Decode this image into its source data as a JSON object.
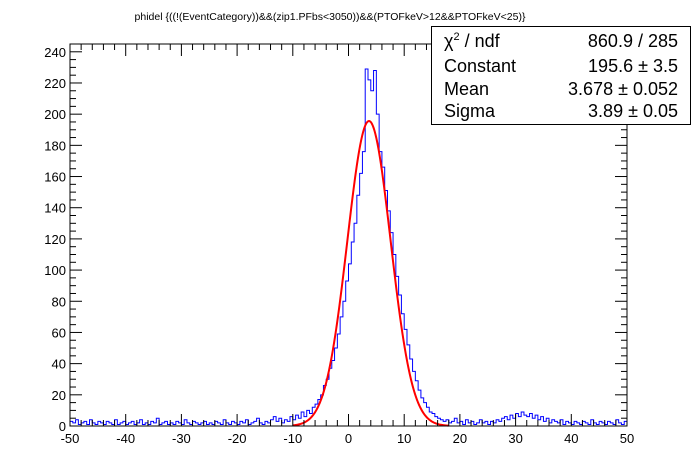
{
  "chart_data": {
    "type": "histogram",
    "title": "phidel {((!(EventCategory))&&(zip1.PFbs<3050))&&(PTOFkeV>12&&PTOFkeV<25)}",
    "xlim": [
      -50,
      50
    ],
    "ylim": [
      0,
      245
    ],
    "xticks": [
      -50,
      -40,
      -30,
      -20,
      -10,
      0,
      10,
      20,
      30,
      40,
      50
    ],
    "yticks": [
      0,
      20,
      40,
      60,
      80,
      100,
      120,
      140,
      160,
      180,
      200,
      220,
      240
    ],
    "bin_width": 0.5,
    "histogram_color": "#0000ff",
    "fit_color": "#ff0000",
    "fit": {
      "function": "gaus",
      "constant": 195.6,
      "mean": 3.678,
      "sigma": 3.89,
      "range": [
        -10,
        18
      ]
    },
    "stats_box": {
      "rows": [
        {
          "name": "ndf",
          "value": "860.9 / 285"
        },
        {
          "name": "Constant",
          "value": "195.6 ± 3.5"
        },
        {
          "name": "Mean",
          "value": "3.678 ± 0.052"
        },
        {
          "name": "Sigma",
          "value": "3.89 ± 0.05"
        }
      ]
    },
    "bins": [
      [
        -50,
        3
      ],
      [
        -49.5,
        2
      ],
      [
        -49,
        4
      ],
      [
        -48.5,
        1
      ],
      [
        -48,
        2
      ],
      [
        -47.5,
        3
      ],
      [
        -47,
        1
      ],
      [
        -46.5,
        4
      ],
      [
        -46,
        2
      ],
      [
        -45.5,
        1
      ],
      [
        -45,
        3
      ],
      [
        -44.5,
        2
      ],
      [
        -44,
        1
      ],
      [
        -43.5,
        3
      ],
      [
        -43,
        2
      ],
      [
        -42.5,
        1
      ],
      [
        -42,
        4
      ],
      [
        -41.5,
        1
      ],
      [
        -41,
        2
      ],
      [
        -40.5,
        3
      ],
      [
        -40,
        1
      ],
      [
        -39.5,
        2
      ],
      [
        -39,
        3
      ],
      [
        -38.5,
        1
      ],
      [
        -38,
        2
      ],
      [
        -37.5,
        4
      ],
      [
        -37,
        1
      ],
      [
        -36.5,
        2
      ],
      [
        -36,
        1
      ],
      [
        -35.5,
        3
      ],
      [
        -35,
        2
      ],
      [
        -34.5,
        5
      ],
      [
        -34,
        1
      ],
      [
        -33.5,
        2
      ],
      [
        -33,
        3
      ],
      [
        -32.5,
        1
      ],
      [
        -32,
        2
      ],
      [
        -31.5,
        1
      ],
      [
        -31,
        3
      ],
      [
        -30.5,
        2
      ],
      [
        -30,
        1
      ],
      [
        -29.5,
        4
      ],
      [
        -29,
        2
      ],
      [
        -28.5,
        1
      ],
      [
        -28,
        3
      ],
      [
        -27.5,
        2
      ],
      [
        -27,
        1
      ],
      [
        -26.5,
        2
      ],
      [
        -26,
        3
      ],
      [
        -25.5,
        1
      ],
      [
        -25,
        2
      ],
      [
        -24.5,
        1
      ],
      [
        -24,
        3
      ],
      [
        -23.5,
        2
      ],
      [
        -23,
        1
      ],
      [
        -22.5,
        4
      ],
      [
        -22,
        2
      ],
      [
        -21.5,
        1
      ],
      [
        -21,
        3
      ],
      [
        -20.5,
        2
      ],
      [
        -20,
        1
      ],
      [
        -19.5,
        3
      ],
      [
        -19,
        2
      ],
      [
        -18.5,
        4
      ],
      [
        -18,
        1
      ],
      [
        -17.5,
        2
      ],
      [
        -17,
        3
      ],
      [
        -16.5,
        5
      ],
      [
        -16,
        2
      ],
      [
        -15.5,
        1
      ],
      [
        -15,
        3
      ],
      [
        -14.5,
        2
      ],
      [
        -14,
        4
      ],
      [
        -13.5,
        6
      ],
      [
        -13,
        3
      ],
      [
        -12.5,
        5
      ],
      [
        -12,
        2
      ],
      [
        -11.5,
        4
      ],
      [
        -11,
        3
      ],
      [
        -10.5,
        6
      ],
      [
        -10,
        4
      ],
      [
        -9.5,
        7
      ],
      [
        -9,
        5
      ],
      [
        -8.5,
        9
      ],
      [
        -8,
        6
      ],
      [
        -7.5,
        10
      ],
      [
        -7,
        8
      ],
      [
        -6.5,
        12
      ],
      [
        -6,
        14
      ],
      [
        -5.5,
        17
      ],
      [
        -5,
        20
      ],
      [
        -4.5,
        26
      ],
      [
        -4,
        30
      ],
      [
        -3.5,
        37
      ],
      [
        -3,
        42
      ],
      [
        -2.5,
        50
      ],
      [
        -2,
        59
      ],
      [
        -1.5,
        70
      ],
      [
        -1,
        80
      ],
      [
        -0.5,
        93
      ],
      [
        0,
        104
      ],
      [
        0.5,
        118
      ],
      [
        1,
        130
      ],
      [
        1.5,
        148
      ],
      [
        2,
        162
      ],
      [
        2.5,
        176
      ],
      [
        3,
        229
      ],
      [
        3.5,
        222
      ],
      [
        4,
        215
      ],
      [
        4.5,
        228
      ],
      [
        5,
        200
      ],
      [
        5.5,
        176
      ],
      [
        6,
        166
      ],
      [
        6.5,
        151
      ],
      [
        7,
        138
      ],
      [
        7.5,
        124
      ],
      [
        8,
        110
      ],
      [
        8.5,
        96
      ],
      [
        9,
        84
      ],
      [
        9.5,
        72
      ],
      [
        10,
        62
      ],
      [
        10.5,
        52
      ],
      [
        11,
        43
      ],
      [
        11.5,
        35
      ],
      [
        12,
        29
      ],
      [
        12.5,
        23
      ],
      [
        13,
        18
      ],
      [
        13.5,
        15
      ],
      [
        14,
        12
      ],
      [
        14.5,
        9
      ],
      [
        15,
        8
      ],
      [
        15.5,
        6
      ],
      [
        16,
        5
      ],
      [
        16.5,
        4
      ],
      [
        17,
        3
      ],
      [
        17.5,
        4
      ],
      [
        18,
        2
      ],
      [
        18.5,
        3
      ],
      [
        19,
        5
      ],
      [
        19.5,
        2
      ],
      [
        20,
        3
      ],
      [
        20.5,
        1
      ],
      [
        21,
        4
      ],
      [
        21.5,
        2
      ],
      [
        22,
        3
      ],
      [
        22.5,
        1
      ],
      [
        23,
        2
      ],
      [
        23.5,
        4
      ],
      [
        24,
        2
      ],
      [
        24.5,
        3
      ],
      [
        25,
        1
      ],
      [
        25.5,
        3
      ],
      [
        26,
        2
      ],
      [
        26.5,
        4
      ],
      [
        27,
        3
      ],
      [
        27.5,
        5
      ],
      [
        28,
        6
      ],
      [
        28.5,
        4
      ],
      [
        29,
        7
      ],
      [
        29.5,
        5
      ],
      [
        30,
        8
      ],
      [
        30.5,
        6
      ],
      [
        31,
        9
      ],
      [
        31.5,
        7
      ],
      [
        32,
        6
      ],
      [
        32.5,
        8
      ],
      [
        33,
        5
      ],
      [
        33.5,
        7
      ],
      [
        34,
        4
      ],
      [
        34.5,
        6
      ],
      [
        35,
        3
      ],
      [
        35.5,
        5
      ],
      [
        36,
        2
      ],
      [
        36.5,
        4
      ],
      [
        37,
        3
      ],
      [
        37.5,
        2
      ],
      [
        38,
        4
      ],
      [
        38.5,
        1
      ],
      [
        39,
        3
      ],
      [
        39.5,
        2
      ],
      [
        40,
        1
      ],
      [
        40.5,
        3
      ],
      [
        41,
        2
      ],
      [
        41.5,
        1
      ],
      [
        42,
        3
      ],
      [
        42.5,
        2
      ],
      [
        43,
        1
      ],
      [
        43.5,
        4
      ],
      [
        44,
        2
      ],
      [
        44.5,
        1
      ],
      [
        45,
        3
      ],
      [
        45.5,
        2
      ],
      [
        46,
        1
      ],
      [
        46.5,
        3
      ],
      [
        47,
        2
      ],
      [
        47.5,
        1
      ],
      [
        48,
        4
      ],
      [
        48.5,
        2
      ],
      [
        49,
        1
      ],
      [
        49.5,
        3
      ]
    ]
  }
}
